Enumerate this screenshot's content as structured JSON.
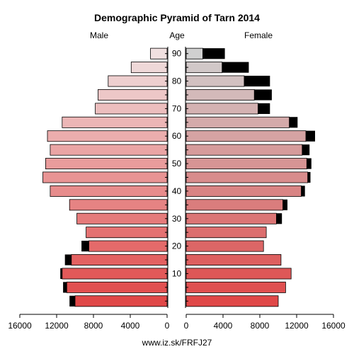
{
  "chart_data": {
    "type": "bar",
    "title": "Demographic Pyramid of Tarn 2014",
    "left_label": "Male",
    "center_label": "Age",
    "right_label": "Female",
    "footer": "www.iz.sk/FRFJ27",
    "x_ticks_left": [
      "16000",
      "12000",
      "8000",
      "4000",
      "0"
    ],
    "x_ticks_right": [
      "0",
      "4000",
      "8000",
      "12000",
      "16000"
    ],
    "xlim": [
      0,
      16000
    ],
    "age_ticks": [
      "10",
      "20",
      "30",
      "40",
      "50",
      "60",
      "70",
      "80",
      "90"
    ],
    "age_groups": [
      "0-4",
      "5-9",
      "10-14",
      "15-19",
      "20-24",
      "25-29",
      "30-34",
      "35-39",
      "40-44",
      "45-49",
      "50-54",
      "55-59",
      "60-64",
      "65-69",
      "70-74",
      "75-79",
      "80-84",
      "85-89",
      "90+"
    ],
    "series": [
      {
        "name": "Male",
        "values": [
          10000,
          10900,
          11400,
          10400,
          8500,
          8800,
          9800,
          10600,
          12700,
          13500,
          13200,
          12700,
          13000,
          11400,
          7800,
          7500,
          6400,
          3900,
          1800
        ],
        "highlight": [
          600,
          400,
          200,
          700,
          800,
          0,
          0,
          0,
          0,
          0,
          0,
          0,
          0,
          0,
          0,
          0,
          0,
          0,
          0
        ]
      },
      {
        "name": "Female",
        "values": [
          10000,
          10800,
          11400,
          10300,
          8400,
          8700,
          9800,
          10500,
          12500,
          13200,
          13100,
          12600,
          13000,
          11200,
          7800,
          7400,
          6300,
          3900,
          1800
        ],
        "highlight": [
          0,
          0,
          0,
          0,
          0,
          0,
          600,
          500,
          400,
          300,
          500,
          800,
          1000,
          900,
          1300,
          1900,
          2800,
          2900,
          2400
        ]
      }
    ],
    "colors": {
      "highlight": "#000000",
      "young": "#e04848",
      "old": "#f0e0e0",
      "female_old": "#d0d0d0"
    },
    "grid": false
  }
}
